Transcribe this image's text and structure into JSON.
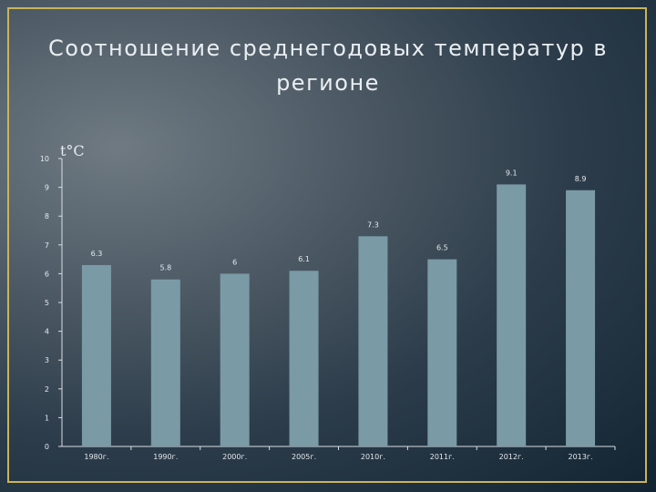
{
  "slide": {
    "title": "Соотношение среднегодовых температур в регионе"
  },
  "chart_data": {
    "type": "bar",
    "title": "Соотношение среднегодовых температур в регионе",
    "unit_label": "t°C",
    "xlabel": "",
    "ylabel": "t°C",
    "categories": [
      "1980г.",
      "1990г.",
      "2000г.",
      "2005г.",
      "2010г.",
      "2011г.",
      "2012г.",
      "2013г."
    ],
    "values": [
      6.3,
      5.8,
      6,
      6.1,
      7.3,
      6.5,
      9.1,
      8.9
    ],
    "data_labels": [
      "6.3",
      "5.8",
      "6",
      "6.1",
      "7.3",
      "6.5",
      "9.1",
      "8.9"
    ],
    "ylim": [
      0,
      10
    ],
    "yticks": [
      0,
      1,
      2,
      3,
      4,
      5,
      6,
      7,
      8,
      9,
      10
    ],
    "grid": false,
    "bar_color": "#7a9aa6",
    "axis_color": "#d8dee3"
  }
}
